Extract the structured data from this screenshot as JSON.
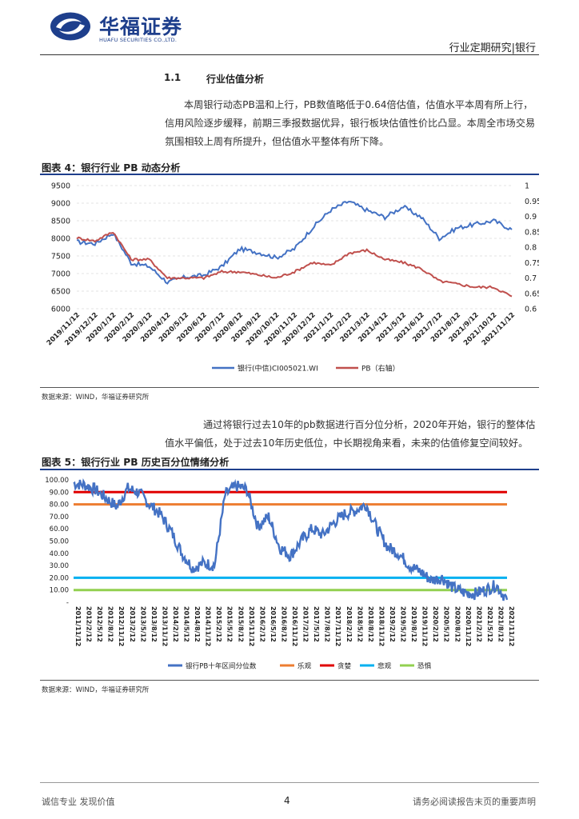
{
  "header": {
    "brand_cn": "华福证券",
    "brand_en": "HUAFU SECURITIES CO.,LTD.",
    "report_type": "行业定期研究|银行"
  },
  "section": {
    "number": "1.1",
    "title": "行业估值分析"
  },
  "paragraph1": "本周银行动态PB温和上行，PB数值略低于0.64倍估值，估值水平本周有所上行，信用风险逐步缓释，前期三季报数据优异，银行板块估值性价比凸显。本周全市场交易氛围相较上周有所提升，但估值水平整体有所下降。",
  "figure4": {
    "title": "图表 4：银行行业 PB 动态分析",
    "source": "数据来源：WIND，华福证券研究所"
  },
  "paragraph2": "通过将银行过去10年的pb数据进行百分位分析，2020年开始，银行的整体估值水平偏低，处于过去10年历史低位，中长期视角来看，未来的估值修复空间较好。",
  "figure5": {
    "title": "图表 5：银行行业 PB 历史百分位情绪分析",
    "source": "数据来源：WIND，华福证券研究所"
  },
  "footer": {
    "left": "诚信专业  发现价值",
    "page": "4",
    "right": "请务必阅读报告末页的重要声明"
  },
  "chart_data": [
    {
      "type": "line",
      "title": "银行行业 PB 动态分析",
      "categories": [
        "2019/11/12",
        "2019/12/12",
        "2020/1/12",
        "2020/2/12",
        "2020/3/12",
        "2020/4/12",
        "2020/5/12",
        "2020/6/12",
        "2020/7/12",
        "2020/8/12",
        "2020/9/12",
        "2020/10/12",
        "2020/11/12",
        "2020/12/12",
        "2021/1/12",
        "2021/2/12",
        "2021/3/12",
        "2021/4/12",
        "2021/5/12",
        "2021/6/12",
        "2021/7/12",
        "2021/8/12",
        "2021/9/12",
        "2021/10/12",
        "2021/11/12"
      ],
      "y_left": {
        "ticks": [
          "9500",
          "9000",
          "8500",
          "8000",
          "7500",
          "7000",
          "6500",
          "6000"
        ],
        "range": [
          6000,
          9500
        ]
      },
      "y_right": {
        "ticks": [
          "1",
          "0.95",
          "0.9",
          "0.85",
          "0.8",
          "0.75",
          "0.7",
          "0.65",
          "0.6"
        ],
        "range": [
          0.6,
          1.0
        ]
      },
      "series": [
        {
          "name": "银行(中信)CI005021.WI",
          "axis": "left",
          "color": "#4472c4",
          "values": [
            7900,
            7850,
            8150,
            7300,
            7200,
            6750,
            6900,
            6950,
            7200,
            7700,
            7600,
            7450,
            7700,
            8300,
            8800,
            9050,
            8800,
            8600,
            8900,
            8600,
            8000,
            8300,
            8400,
            8500,
            8250
          ]
        },
        {
          "name": "PB（右轴）",
          "axis": "right",
          "color": "#c0504d",
          "values": [
            0.83,
            0.82,
            0.85,
            0.76,
            0.76,
            0.7,
            0.7,
            0.7,
            0.72,
            0.72,
            0.71,
            0.7,
            0.72,
            0.75,
            0.74,
            0.78,
            0.79,
            0.76,
            0.75,
            0.73,
            0.69,
            0.68,
            0.67,
            0.67,
            0.64
          ]
        }
      ]
    },
    {
      "type": "line",
      "title": "银行行业 PB 历史百分位情绪分析",
      "categories": [
        "2011/11/12",
        "2012/2/12",
        "2012/5/12",
        "2012/8/12",
        "2012/11/12",
        "2013/2/12",
        "2013/5/12",
        "2013/8/12",
        "2013/11/12",
        "2014/2/12",
        "2014/5/12",
        "2014/8/12",
        "2014/11/12",
        "2015/2/12",
        "2015/5/12",
        "2015/8/12",
        "2015/11/12",
        "2016/2/12",
        "2016/5/12",
        "2016/8/12",
        "2016/11/12",
        "2017/2/12",
        "2017/5/12",
        "2017/8/12",
        "2017/11/12",
        "2018/2/12",
        "2018/5/12",
        "2018/8/12",
        "2018/11/12",
        "2019/2/12",
        "2019/5/12",
        "2019/8/12",
        "2019/11/12",
        "2020/2/12",
        "2020/5/12",
        "2020/8/12",
        "2020/11/12",
        "2021/2/12",
        "2021/5/12",
        "2021/8/12",
        "2021/11/12"
      ],
      "y_ticks": [
        "100.00",
        "90.00",
        "80.00",
        "70.00",
        "60.00",
        "50.00",
        "40.00",
        "30.00",
        "20.00",
        "10.00",
        "-"
      ],
      "range": [
        0,
        100
      ],
      "series": [
        {
          "name": "银行PB十年区间分位数",
          "color": "#4472c4",
          "values": [
            97,
            96,
            92,
            85,
            78,
            93,
            90,
            80,
            72,
            58,
            40,
            28,
            32,
            30,
            88,
            95,
            92,
            62,
            70,
            45,
            38,
            50,
            60,
            55,
            65,
            72,
            75,
            80,
            60,
            45,
            40,
            30,
            25,
            18,
            20,
            12,
            8,
            7,
            10,
            14,
            2
          ]
        },
        {
          "name": "乐观",
          "color": "#ed7d31",
          "constant": 80
        },
        {
          "name": "贪婪",
          "color": "#e00000",
          "constant": 90
        },
        {
          "name": "悲观",
          "color": "#00b0f0",
          "constant": 20
        },
        {
          "name": "恐惧",
          "color": "#92d050",
          "constant": 10
        }
      ]
    }
  ]
}
